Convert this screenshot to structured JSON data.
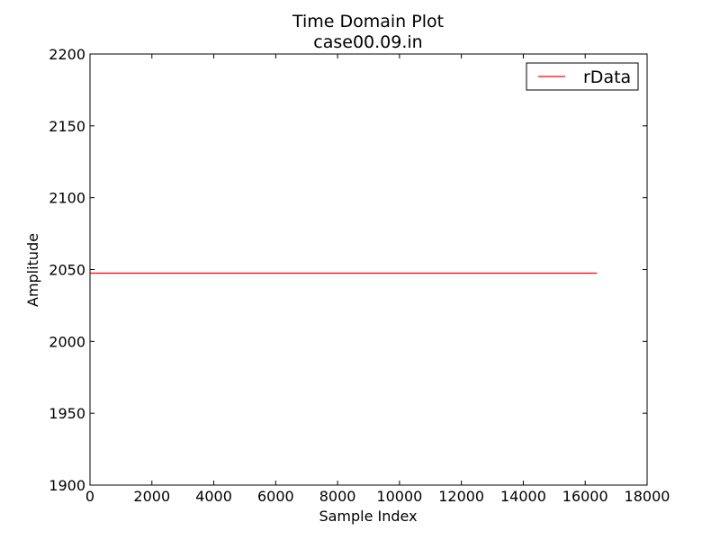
{
  "chart_data": {
    "type": "line",
    "title": "Time Domain Plot",
    "subtitle": "case00.09.in",
    "xlabel": "Sample Index",
    "ylabel": "Amplitude",
    "xlim": [
      0,
      18000
    ],
    "ylim": [
      1900,
      2200
    ],
    "xticks": [
      0,
      2000,
      4000,
      6000,
      8000,
      10000,
      12000,
      14000,
      16000,
      18000
    ],
    "yticks": [
      1900,
      1950,
      2000,
      2050,
      2100,
      2150,
      2200
    ],
    "grid": false,
    "legend_position": "top-right",
    "series": [
      {
        "name": "rData",
        "color": "#ff0000",
        "x": [
          0,
          16384
        ],
        "y": [
          2047.5,
          2047.5
        ]
      }
    ]
  }
}
